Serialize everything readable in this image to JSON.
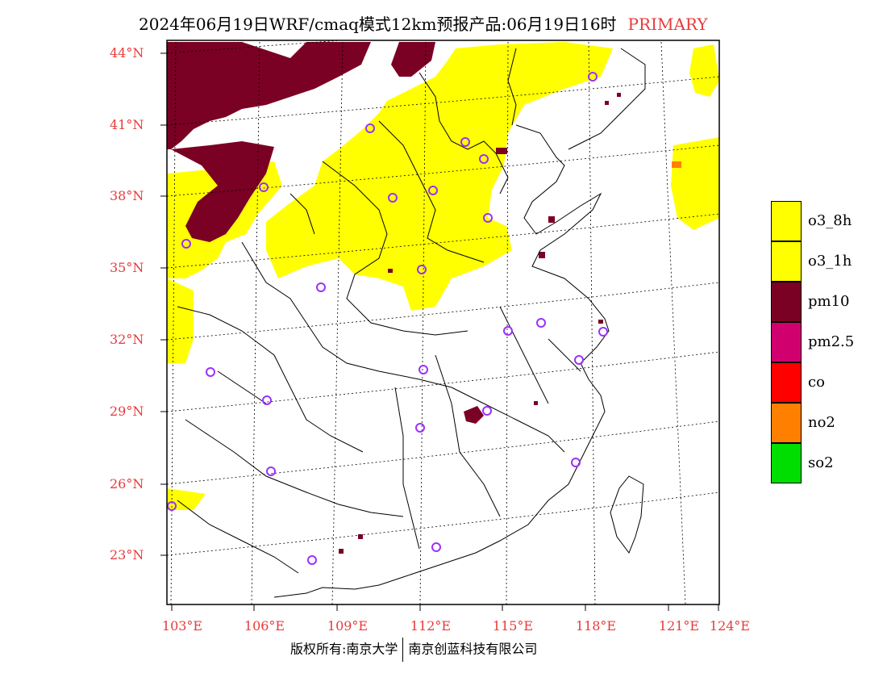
{
  "title": {
    "main": "2024年06月19日WRF/cmaq模式12km预报产品:06月19日16时",
    "tag": "PRIMARY"
  },
  "axes": {
    "lat_labels": [
      "44°N",
      "41°N",
      "38°N",
      "35°N",
      "32°N",
      "29°N",
      "26°N",
      "23°N"
    ],
    "lon_labels": [
      "103°E",
      "106°E",
      "109°E",
      "112°E",
      "115°E",
      "118°E",
      "121°E",
      "124°E"
    ]
  },
  "legend": {
    "items": [
      {
        "label": "o3_8h",
        "color": "#ffff00"
      },
      {
        "label": "o3_1h",
        "color": "#ffff00"
      },
      {
        "label": "pm10",
        "color": "#7a0024"
      },
      {
        "label": "pm2.5",
        "color": "#d0006f"
      },
      {
        "label": "co",
        "color": "#ff0000"
      },
      {
        "label": "no2",
        "color": "#ff7f00"
      },
      {
        "label": "so2",
        "color": "#00dd00"
      }
    ]
  },
  "colors": {
    "o3": "#ffff00",
    "pm10": "#7a0024",
    "pm25": "#d0006f",
    "no2": "#ff7f00",
    "station": "#9b30ff",
    "label_red": "#e83a3a"
  },
  "copyright": {
    "left": "版权所有:南京大学",
    "right": "南京创蓝科技有限公司"
  }
}
